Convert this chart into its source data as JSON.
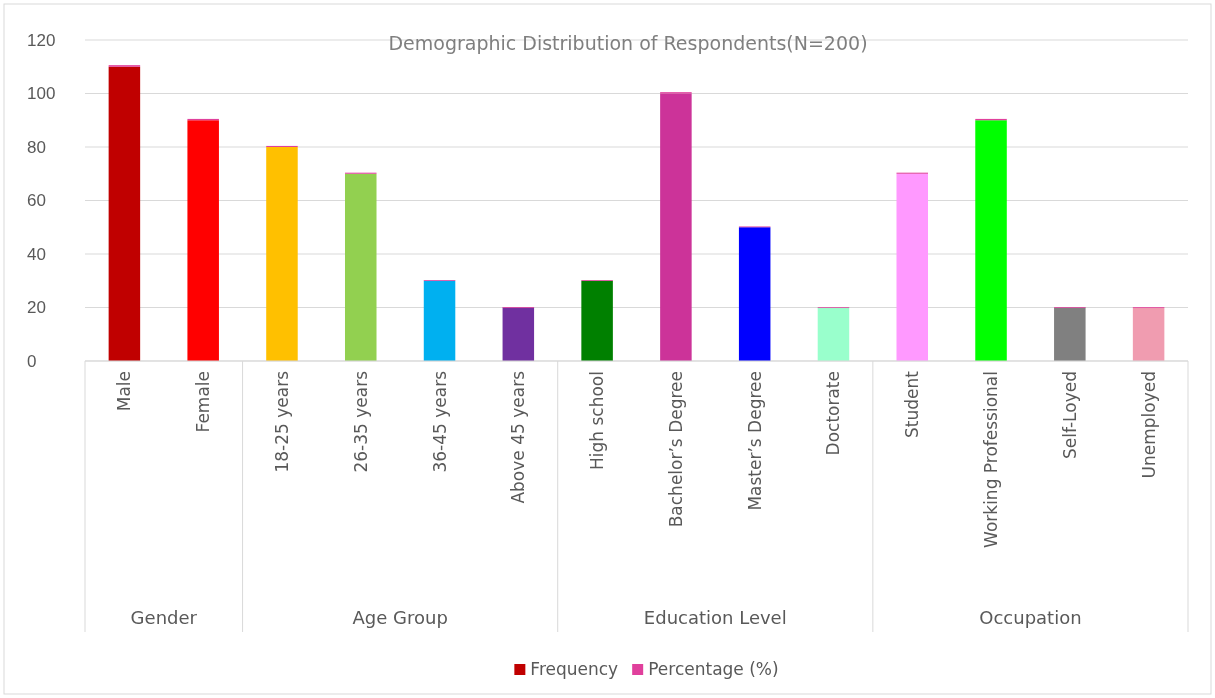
{
  "chart_data": {
    "type": "bar",
    "title": "Demographic Distribution of Respondents(N=200)",
    "stacked": true,
    "categories": [
      "Male",
      "Female",
      "18-25 years",
      "26-35 years",
      "36-45 years",
      "Above 45 years",
      "High school",
      "Bachelor’s Degree",
      "Master’s Degree",
      "Doctorate",
      "Student",
      "Working Professional",
      "Self-Loyed",
      "Unemployed"
    ],
    "series": [
      {
        "name": "Frequency",
        "color": "#c00000",
        "colors": [
          "#c00000",
          "#ff0000",
          "#ffc000",
          "#92d050",
          "#00b0f0",
          "#7030a0",
          "#008000",
          "#cc3399",
          "#0000ff",
          "#99ffcc",
          "#ff99ff",
          "#00ff00",
          "#808080",
          "#f09cb0"
        ],
        "values": [
          110,
          90,
          80,
          70,
          30,
          20,
          30,
          100,
          50,
          20,
          70,
          90,
          20,
          20
        ]
      },
      {
        "name": "Percentage (%)",
        "color": "#e0409c",
        "values": [
          0.6,
          0.5,
          0.4,
          0.4,
          0.2,
          0.1,
          0.2,
          0.5,
          0.3,
          0.1,
          0.4,
          0.5,
          0.1,
          0.1
        ]
      }
    ],
    "annotations": [
      "Gender",
      "Age Group",
      "Education Level",
      "Occupation"
    ],
    "ylim": [
      0,
      120
    ],
    "yticks": [
      0,
      20,
      40,
      60,
      80,
      100,
      120
    ],
    "grid": "y",
    "legend": "bottom"
  }
}
